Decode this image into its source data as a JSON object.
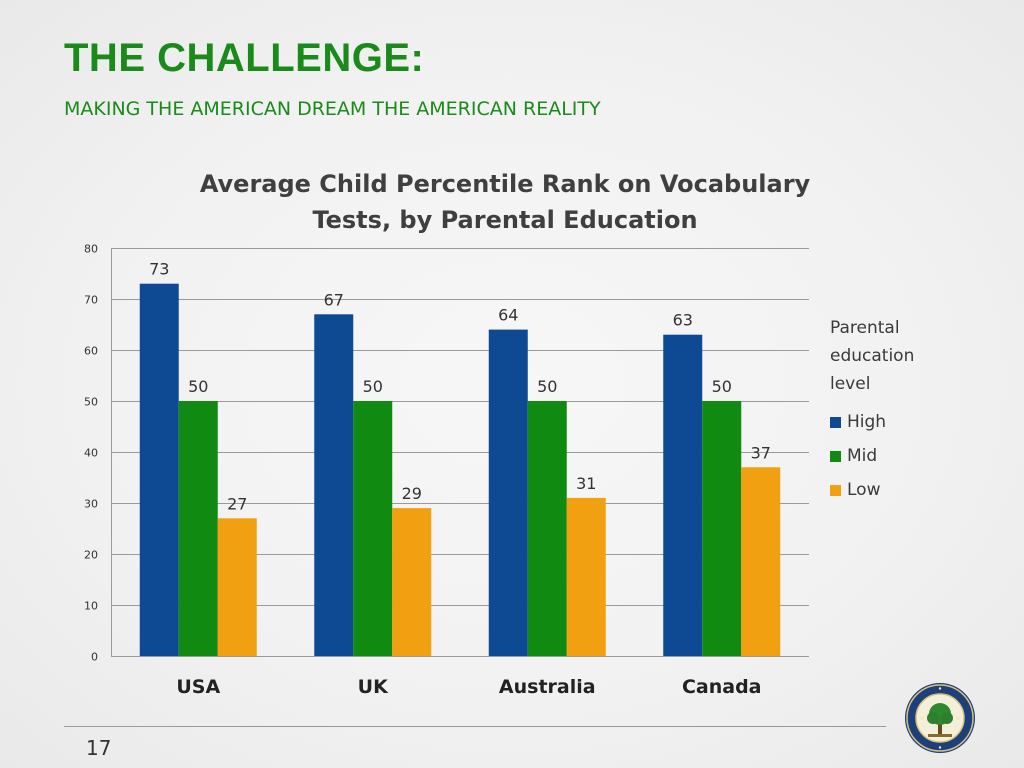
{
  "slide": {
    "title": "THE CHALLENGE:",
    "subtitle": "MAKING THE AMERICAN DREAM THE AMERICAN REALITY",
    "page_number": "17",
    "seal_label": "DEPARTMENT OF EDUCATION"
  },
  "colors": {
    "title_green": "#1a8a1a",
    "high": "#0d4a93",
    "mid": "#118a11",
    "low": "#f0a010"
  },
  "chart_data": {
    "type": "bar",
    "title_line1": "Average Child Percentile Rank on Vocabulary",
    "title_line2": "Tests, by Parental Education",
    "categories": [
      "USA",
      "UK",
      "Australia",
      "Canada"
    ],
    "series": [
      {
        "name": "High",
        "values": [
          73,
          67,
          64,
          63
        ],
        "color": "#0d4a93"
      },
      {
        "name": "Mid",
        "values": [
          50,
          50,
          50,
          50
        ],
        "color": "#118a11"
      },
      {
        "name": "Low",
        "values": [
          27,
          29,
          31,
          37
        ],
        "color": "#f0a010"
      }
    ],
    "legend_title": "Parental education level",
    "legend_position": "right",
    "ylim": [
      0,
      80
    ],
    "yticks": [
      0,
      10,
      20,
      30,
      40,
      50,
      60,
      70,
      80
    ],
    "grid": true
  }
}
